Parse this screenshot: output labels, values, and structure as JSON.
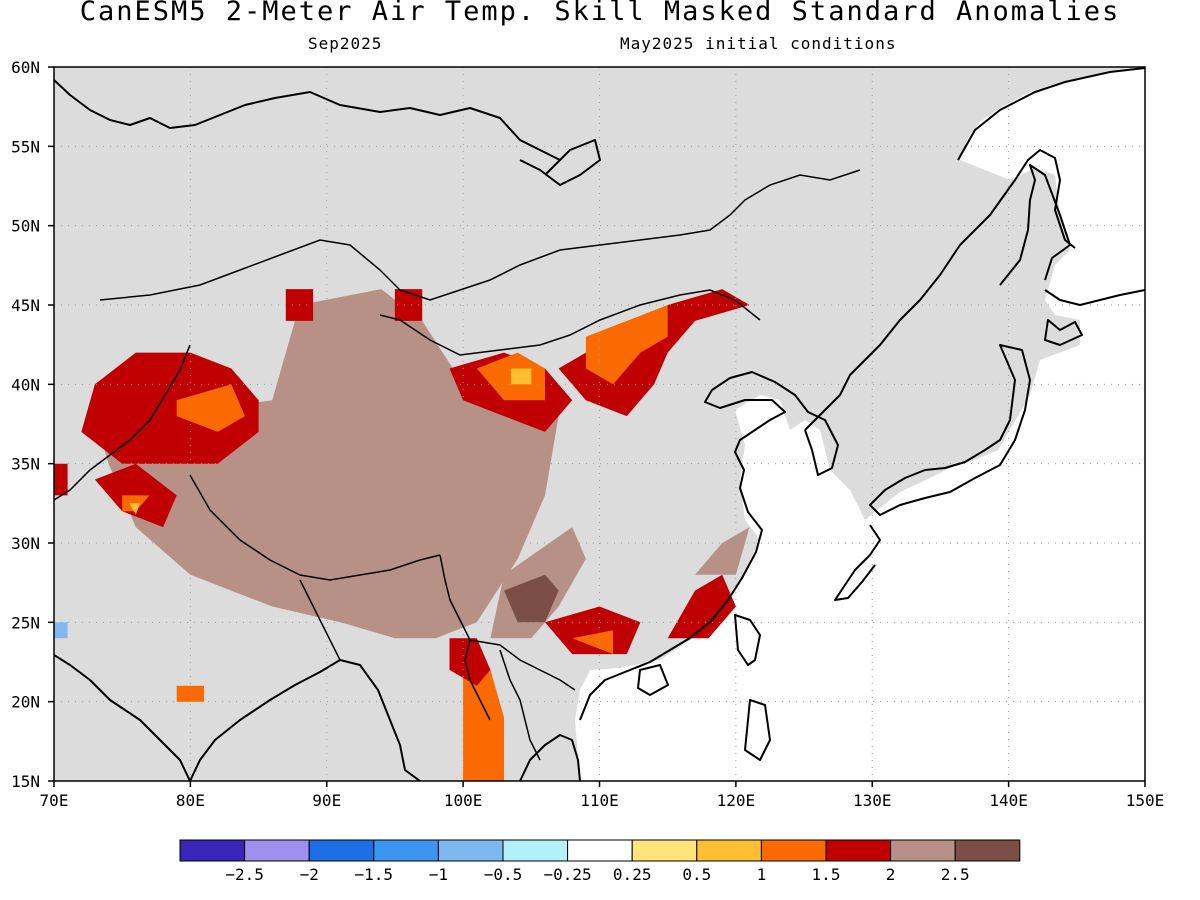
{
  "header": {
    "title": "CanESM5 2-Meter Air Temp. Skill Masked Standard Anomalies",
    "target_month": "Sep2025",
    "initial_conditions": "May2025 initial conditions"
  },
  "map": {
    "lon_range": [
      70,
      150
    ],
    "lat_range": [
      15,
      60
    ],
    "lat_labels": [
      "60N",
      "55N",
      "50N",
      "45N",
      "40N",
      "35N",
      "30N",
      "25N",
      "20N",
      "15N"
    ],
    "lon_labels": [
      "70E",
      "80E",
      "90E",
      "100E",
      "110E",
      "120E",
      "130E",
      "140E",
      "150E"
    ],
    "grid_lons": [
      80,
      90,
      100,
      110,
      120,
      130,
      140
    ],
    "grid_lats": [
      20,
      25,
      30,
      35,
      40,
      45,
      50,
      55
    ],
    "masked_color": "#dcdcdc",
    "ocean_color": "#ffffff",
    "anomaly_regions": [
      {
        "name": "tarim-tibet core",
        "color": "#7b4f45",
        "poly": [
          [
            78,
            34
          ],
          [
            83,
            35
          ],
          [
            86,
            38
          ],
          [
            91,
            38
          ],
          [
            94,
            39
          ],
          [
            99,
            38
          ],
          [
            100,
            35
          ],
          [
            104,
            34
          ],
          [
            103,
            31
          ],
          [
            101,
            28
          ],
          [
            98,
            26
          ],
          [
            95,
            27
          ],
          [
            90,
            26
          ],
          [
            87,
            28
          ],
          [
            83,
            29
          ],
          [
            79,
            32
          ]
        ]
      },
      {
        "name": "tibet halo",
        "color": "#b89186",
        "poly": [
          [
            73,
            38
          ],
          [
            78,
            38
          ],
          [
            86,
            39
          ],
          [
            88,
            45
          ],
          [
            94,
            46
          ],
          [
            97,
            44
          ],
          [
            100,
            40
          ],
          [
            105,
            40
          ],
          [
            107,
            38
          ],
          [
            106,
            33
          ],
          [
            104,
            29
          ],
          [
            101,
            25
          ],
          [
            98,
            24
          ],
          [
            95,
            24
          ],
          [
            91,
            25
          ],
          [
            86,
            26
          ],
          [
            80,
            28
          ],
          [
            76,
            31
          ],
          [
            74,
            35
          ]
        ]
      },
      {
        "name": "south china tan",
        "color": "#b89186",
        "poly": [
          [
            103,
            28
          ],
          [
            108,
            31
          ],
          [
            109,
            29
          ],
          [
            107,
            26
          ],
          [
            105,
            24
          ],
          [
            102,
            24
          ]
        ]
      },
      {
        "name": "south china core",
        "color": "#7b4f45",
        "poly": [
          [
            103,
            27
          ],
          [
            106,
            28
          ],
          [
            107,
            27
          ],
          [
            106,
            25
          ],
          [
            104,
            25
          ]
        ]
      },
      {
        "name": "pamir red",
        "color": "#c00000",
        "poly": [
          [
            73,
            40
          ],
          [
            76,
            42
          ],
          [
            80,
            42
          ],
          [
            83,
            41
          ],
          [
            85,
            39
          ],
          [
            85,
            37
          ],
          [
            82,
            35
          ],
          [
            78,
            35
          ],
          [
            75,
            35
          ],
          [
            72,
            37
          ]
        ]
      },
      {
        "name": "pamir orange",
        "color": "#fb6a00",
        "poly": [
          [
            79,
            39
          ],
          [
            83,
            40
          ],
          [
            84,
            38
          ],
          [
            82,
            37
          ],
          [
            79,
            38
          ]
        ]
      },
      {
        "name": "kashmir red",
        "color": "#c00000",
        "poly": [
          [
            73,
            34
          ],
          [
            76,
            35
          ],
          [
            79,
            33
          ],
          [
            78,
            31
          ],
          [
            75,
            32
          ]
        ]
      },
      {
        "name": "kashmir orange",
        "color": "#fb6a00",
        "poly": [
          [
            75,
            33
          ],
          [
            77,
            33
          ],
          [
            76,
            32
          ],
          [
            75,
            32
          ]
        ]
      },
      {
        "name": "kashmir yellow",
        "color": "#ffbf33",
        "poly": [
          [
            75.5,
            32.5
          ],
          [
            76.3,
            32.5
          ],
          [
            76,
            31.8
          ]
        ]
      },
      {
        "name": "gansu red",
        "color": "#c00000",
        "poly": [
          [
            99,
            41
          ],
          [
            103,
            42
          ],
          [
            106,
            41
          ],
          [
            108,
            39
          ],
          [
            106,
            37
          ],
          [
            103,
            38
          ],
          [
            100,
            39
          ]
        ]
      },
      {
        "name": "gansu orange",
        "color": "#fb6a00",
        "poly": [
          [
            101,
            41
          ],
          [
            104,
            42
          ],
          [
            106,
            41
          ],
          [
            106,
            39
          ],
          [
            103,
            39
          ]
        ]
      },
      {
        "name": "gansu yellow",
        "color": "#ffbf33",
        "poly": [
          [
            103.5,
            41
          ],
          [
            105,
            41
          ],
          [
            105,
            40
          ],
          [
            103.5,
            40
          ]
        ]
      },
      {
        "name": "inner mongolia red",
        "color": "#c00000",
        "poly": [
          [
            107,
            41
          ],
          [
            111,
            43
          ],
          [
            115,
            45
          ],
          [
            119,
            46
          ],
          [
            121,
            45
          ],
          [
            117,
            44
          ],
          [
            115,
            42
          ],
          [
            114,
            40
          ],
          [
            112,
            38
          ],
          [
            109,
            39
          ]
        ]
      },
      {
        "name": "inner mongolia orange",
        "color": "#fb6a00",
        "poly": [
          [
            109,
            43
          ],
          [
            112,
            44
          ],
          [
            115,
            45
          ],
          [
            115,
            43
          ],
          [
            113,
            42
          ],
          [
            111,
            40
          ],
          [
            109,
            41
          ]
        ]
      },
      {
        "name": "zungar red",
        "color": "#c00000",
        "poly": [
          [
            87,
            46
          ],
          [
            89,
            46
          ],
          [
            89,
            44
          ],
          [
            87,
            44
          ]
        ]
      },
      {
        "name": "altai red",
        "color": "#c00000",
        "poly": [
          [
            95,
            46
          ],
          [
            97,
            46
          ],
          [
            97,
            44
          ],
          [
            95,
            44
          ]
        ]
      },
      {
        "name": "guangxi red",
        "color": "#c00000",
        "poly": [
          [
            106,
            25
          ],
          [
            110,
            26
          ],
          [
            113,
            25
          ],
          [
            112,
            23
          ],
          [
            108,
            23
          ]
        ]
      },
      {
        "name": "guangxi orange",
        "color": "#fb6a00",
        "poly": [
          [
            108,
            24
          ],
          [
            111,
            24.5
          ],
          [
            111,
            23
          ]
        ]
      },
      {
        "name": "fujian red",
        "color": "#c00000",
        "poly": [
          [
            115,
            24
          ],
          [
            117,
            27
          ],
          [
            119,
            28
          ],
          [
            120,
            26
          ],
          [
            118,
            24
          ]
        ]
      },
      {
        "name": "fujian tan",
        "color": "#b89186",
        "poly": [
          [
            117,
            28
          ],
          [
            119,
            30
          ],
          [
            121,
            31
          ],
          [
            120,
            28
          ]
        ]
      },
      {
        "name": "indochina orange",
        "color": "#fb6a00",
        "poly": [
          [
            100,
            22
          ],
          [
            102,
            22
          ],
          [
            103,
            19
          ],
          [
            103,
            15
          ],
          [
            100,
            15
          ],
          [
            100,
            18
          ]
        ]
      },
      {
        "name": "indochina red",
        "color": "#c00000",
        "poly": [
          [
            99,
            24
          ],
          [
            101,
            24
          ],
          [
            102,
            22
          ],
          [
            101,
            21
          ],
          [
            99,
            22
          ]
        ]
      },
      {
        "name": "india orange",
        "color": "#fb6a00",
        "poly": [
          [
            79,
            21
          ],
          [
            81,
            21
          ],
          [
            81,
            20
          ],
          [
            79,
            20
          ]
        ]
      },
      {
        "name": "iran red",
        "color": "#c00000",
        "poly": [
          [
            70,
            35
          ],
          [
            71,
            35
          ],
          [
            71,
            33
          ],
          [
            70,
            33
          ]
        ]
      },
      {
        "name": "iran blue",
        "color": "#82b8f0",
        "poly": [
          [
            70,
            25
          ],
          [
            71,
            25
          ],
          [
            71,
            24
          ],
          [
            70,
            24
          ]
        ]
      }
    ]
  },
  "colorbar": {
    "colors": [
      "#3b25b8",
      "#9f8fef",
      "#1e6ee6",
      "#3c96f0",
      "#7eb8f0",
      "#b4f0fa",
      "#ffffff",
      "#ffe57a",
      "#ffbf33",
      "#fb6a00",
      "#c00000",
      "#b89186",
      "#7b4f45"
    ],
    "labels": [
      "−2.5",
      "−2",
      "−1.5",
      "−1",
      "−0.5",
      "−0.25",
      "0.25",
      "0.5",
      "1",
      "1.5",
      "2",
      "2.5"
    ]
  }
}
